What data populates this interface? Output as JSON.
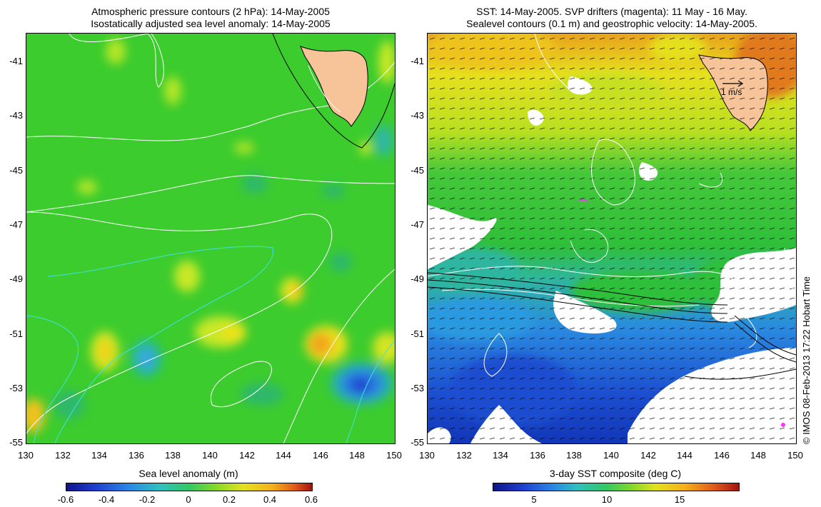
{
  "left_panel": {
    "title_line1": "Atmospheric pressure contours (2 hPa): 14-May-2005",
    "title_line2": "Isostatically adjusted sea level anomaly: 14-May-2005",
    "y_ticks": [
      "-41",
      "-43",
      "-45",
      "-47",
      "-49",
      "-51",
      "-53",
      "-55"
    ],
    "x_ticks": [
      "130",
      "132",
      "134",
      "136",
      "138",
      "140",
      "142",
      "144",
      "146",
      "148",
      "150"
    ],
    "colorbar_title": "Sea level anomaly (m)",
    "colorbar_ticks": [
      "-0.6",
      "-0.4",
      "-0.2",
      "0",
      "0.2",
      "0.4",
      "0.6"
    ]
  },
  "right_panel": {
    "title_line1": "SST: 14-May-2005. SVP drifters (magenta): 11 May - 16 May.",
    "title_line2": "Sealevel contours (0.1 m) and geostrophic velocity: 14-May-2005.",
    "y_ticks": [
      "-41",
      "-43",
      "-45",
      "-47",
      "-49",
      "-51",
      "-53",
      "-55"
    ],
    "x_ticks": [
      "130",
      "132",
      "134",
      "136",
      "138",
      "140",
      "142",
      "144",
      "146",
      "148",
      "150"
    ],
    "scale_label": "1 m/s",
    "colorbar_title": "3-day SST composite (deg C)",
    "colorbar_ticks": [
      "5",
      "10",
      "15"
    ]
  },
  "copyright": "© IMOS 08-Feb-2013 17:22 Hobart Time",
  "map_extent": {
    "lon": [
      130,
      150
    ],
    "lat": [
      -55,
      -40
    ]
  },
  "colors": {
    "land": "#f7c49a",
    "sla_base": "#3ccc2e",
    "sst_north": "#e6e01e",
    "sst_mid": "#2fbf3a",
    "sst_south": "#2a6fd6",
    "cloud": "#ffffff",
    "drifter": "#ff33ff"
  }
}
